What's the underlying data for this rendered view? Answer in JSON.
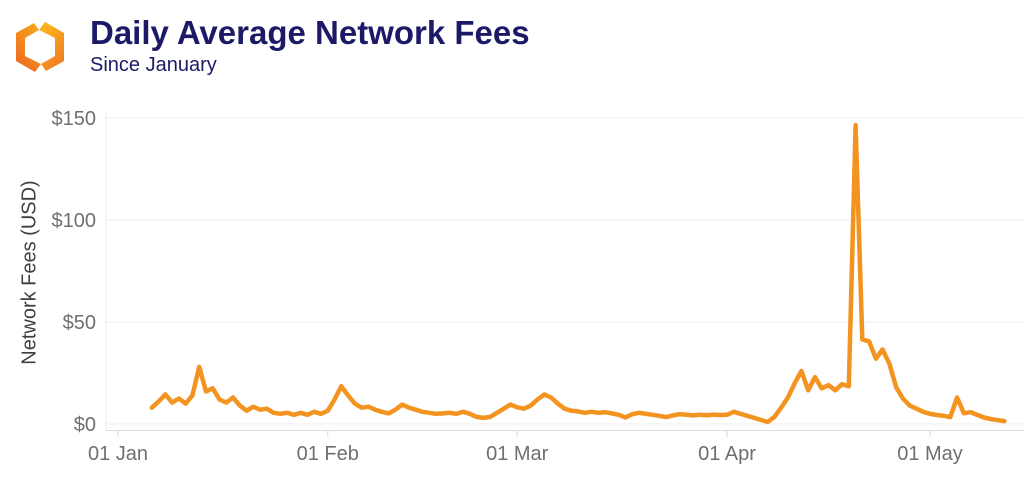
{
  "header": {
    "title": "Daily Average Network Fees",
    "subtitle": "Since January"
  },
  "colors": {
    "title_text": "#1C1A66",
    "tick_text": "#6F6F6F",
    "axis_title_text": "#3F3F3F",
    "gridline": "#ECECEC",
    "axis_line": "#D9D9D9",
    "line": "#F39420",
    "logo_left_top": "#F9A11C",
    "logo_left_bottom": "#EC6D1F",
    "logo_right_top": "#FBB01E",
    "logo_right_bottom": "#F07E22"
  },
  "chart_data": {
    "type": "line",
    "title": "Daily Average Network Fees",
    "subtitle": "Since January",
    "xlabel": "",
    "ylabel": "Network Fees (USD)",
    "ylim": [
      0,
      150
    ],
    "grid": "horizontal",
    "legend_position": "none",
    "line_color": "#F39420",
    "y_ticks": [
      {
        "value": 0,
        "label": "$0"
      },
      {
        "value": 50,
        "label": "$50"
      },
      {
        "value": 100,
        "label": "$100"
      },
      {
        "value": 150,
        "label": "$150"
      }
    ],
    "x_tick_labels": [
      "01 Jan",
      "01 Feb",
      "01 Mar",
      "01 Apr",
      "01 May"
    ],
    "x_tick_day_offsets": [
      0,
      31,
      59,
      90,
      120
    ],
    "series": [
      {
        "name": "Daily Average Network Fees (USD)",
        "start_day_offset": 5,
        "values": [
          8,
          11,
          14.5,
          10.5,
          12.5,
          10,
          14,
          28,
          16,
          17.5,
          12,
          10.5,
          13,
          9,
          6.5,
          8.5,
          7,
          7.5,
          5.5,
          5,
          5.5,
          4.5,
          5.5,
          4.5,
          6,
          5,
          6.5,
          12,
          18.5,
          14,
          10,
          8,
          8.5,
          7,
          6,
          5.2,
          7,
          9.5,
          8,
          7,
          6,
          5.5,
          5,
          5.2,
          5.5,
          5,
          6,
          5,
          3.5,
          3,
          3.5,
          5.5,
          7.5,
          9.5,
          8.2,
          7.5,
          9,
          12,
          14.5,
          13,
          10,
          7.5,
          6.5,
          6.2,
          5.5,
          6,
          5.5,
          5.8,
          5.2,
          4.5,
          3.2,
          4.8,
          5.5,
          5,
          4.5,
          4,
          3.4,
          4.2,
          4.8,
          4.5,
          4.2,
          4.5,
          4.3,
          4.6,
          4.4,
          4.5,
          6,
          5,
          4,
          3,
          2,
          1,
          3.5,
          8,
          13,
          20,
          26,
          16.5,
          23,
          17.5,
          19,
          16.5,
          19.5,
          18.5,
          146.5,
          41.5,
          40.5,
          32,
          36.5,
          29.5,
          18,
          12.5,
          9,
          7.5,
          6,
          5,
          4.4,
          4,
          3.4,
          13,
          5.3,
          5.8,
          4.4,
          3.2,
          2.4,
          1.9,
          1.4
        ]
      }
    ]
  }
}
